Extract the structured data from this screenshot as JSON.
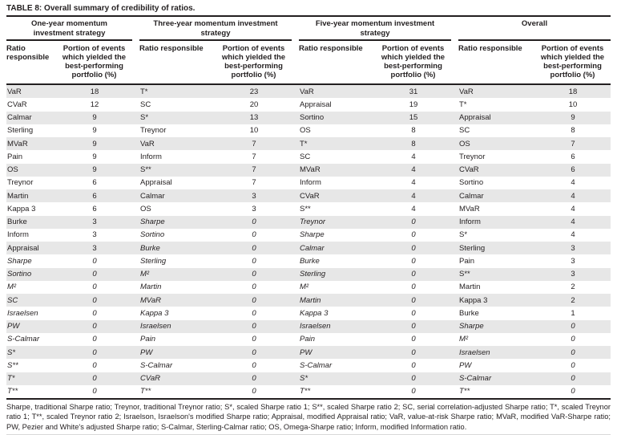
{
  "title": "TABLE 8: Overall summary of credibility of ratios.",
  "column_headers": {
    "ratio": "Ratio responsible",
    "portion": "Portion of events which yielded the best-performing portfolio (%)"
  },
  "groups": [
    {
      "label": "One-year momentum investment strategy",
      "rows": [
        [
          "VaR",
          "18"
        ],
        [
          "CVaR",
          "12"
        ],
        [
          "Calmar",
          "9"
        ],
        [
          "Sterling",
          "9"
        ],
        [
          "MVaR",
          "9"
        ],
        [
          "Pain",
          "9"
        ],
        [
          "OS",
          "9"
        ],
        [
          "Treynor",
          "6"
        ],
        [
          "Martin",
          "6"
        ],
        [
          "Kappa 3",
          "6"
        ],
        [
          "Burke",
          "3"
        ],
        [
          "Inform",
          "3"
        ],
        [
          "Appraisal",
          "3"
        ],
        [
          "Sharpe",
          "0"
        ],
        [
          "Sortino",
          "0"
        ],
        [
          "M²",
          "0"
        ],
        [
          "SC",
          "0"
        ],
        [
          "Israelsen",
          "0"
        ],
        [
          "PW",
          "0"
        ],
        [
          "S-Calmar",
          "0"
        ],
        [
          "S*",
          "0"
        ],
        [
          "S**",
          "0"
        ],
        [
          "T*",
          "0"
        ],
        [
          "T**",
          "0"
        ]
      ]
    },
    {
      "label": "Three-year momentum investment strategy",
      "rows": [
        [
          "T*",
          "23"
        ],
        [
          "SC",
          "20"
        ],
        [
          "S*",
          "13"
        ],
        [
          "Treynor",
          "10"
        ],
        [
          "VaR",
          "7"
        ],
        [
          "Inform",
          "7"
        ],
        [
          "S**",
          "7"
        ],
        [
          "Appraisal",
          "7"
        ],
        [
          "Calmar",
          "3"
        ],
        [
          "OS",
          "3"
        ],
        [
          "Sharpe",
          "0"
        ],
        [
          "Sortino",
          "0"
        ],
        [
          "Burke",
          "0"
        ],
        [
          "Sterling",
          "0"
        ],
        [
          "M²",
          "0"
        ],
        [
          "Martin",
          "0"
        ],
        [
          "MVaR",
          "0"
        ],
        [
          "Kappa 3",
          "0"
        ],
        [
          "Israelsen",
          "0"
        ],
        [
          "Pain",
          "0"
        ],
        [
          "PW",
          "0"
        ],
        [
          "S-Calmar",
          "0"
        ],
        [
          "CVaR",
          "0"
        ],
        [
          "T**",
          "0"
        ]
      ]
    },
    {
      "label": "Five-year momentum investment strategy",
      "rows": [
        [
          "VaR",
          "31"
        ],
        [
          "Appraisal",
          "19"
        ],
        [
          "Sortino",
          "15"
        ],
        [
          "OS",
          "8"
        ],
        [
          "T*",
          "8"
        ],
        [
          "SC",
          "4"
        ],
        [
          "MVaR",
          "4"
        ],
        [
          "Inform",
          "4"
        ],
        [
          "CVaR",
          "4"
        ],
        [
          "S**",
          "4"
        ],
        [
          "Treynor",
          "0"
        ],
        [
          "Sharpe",
          "0"
        ],
        [
          "Calmar",
          "0"
        ],
        [
          "Burke",
          "0"
        ],
        [
          "Sterling",
          "0"
        ],
        [
          "M²",
          "0"
        ],
        [
          "Martin",
          "0"
        ],
        [
          "Kappa 3",
          "0"
        ],
        [
          "Israelsen",
          "0"
        ],
        [
          "Pain",
          "0"
        ],
        [
          "PW",
          "0"
        ],
        [
          "S-Calmar",
          "0"
        ],
        [
          "S*",
          "0"
        ],
        [
          "T**",
          "0"
        ]
      ]
    },
    {
      "label": "Overall",
      "rows": [
        [
          "VaR",
          "18"
        ],
        [
          "T*",
          "10"
        ],
        [
          "Appraisal",
          "9"
        ],
        [
          "SC",
          "8"
        ],
        [
          "OS",
          "7"
        ],
        [
          "Treynor",
          "6"
        ],
        [
          "CVaR",
          "6"
        ],
        [
          "Sortino",
          "4"
        ],
        [
          "Calmar",
          "4"
        ],
        [
          "MVaR",
          "4"
        ],
        [
          "Inform",
          "4"
        ],
        [
          "S*",
          "4"
        ],
        [
          "Sterling",
          "3"
        ],
        [
          "Pain",
          "3"
        ],
        [
          "S**",
          "3"
        ],
        [
          "Martin",
          "2"
        ],
        [
          "Kappa 3",
          "2"
        ],
        [
          "Burke",
          "1"
        ],
        [
          "Sharpe",
          "0"
        ],
        [
          "M²",
          "0"
        ],
        [
          "Israelsen",
          "0"
        ],
        [
          "PW",
          "0"
        ],
        [
          "S-Calmar",
          "0"
        ],
        [
          "T**",
          "0"
        ]
      ]
    }
  ],
  "footnote": "Sharpe, traditional Sharpe ratio; Treynor, traditional Treynor ratio; S*, scaled Sharpe ratio 1; S**, scaled Sharpe ratio 2; SC, serial correlation-adjusted Sharpe ratio; T*, scaled Treynor ratio 1; T**, scaled Treynor ratio 2; Israelson, Israelson's modified Sharpe ratio; Appraisal, modified Appraisal ratio; VaR, value-at-risk Sharpe ratio; MVaR, modified VaR-Sharpe ratio; PW, Pezier and White's adjusted Sharpe ratio; S-Calmar, Sterling-Calmar ratio; OS, Omega-Sharpe ratio; Inform, modified Information ratio.",
  "colors": {
    "stripe": "#e7e7e7",
    "rule": "#231f20",
    "text": "#231f20"
  }
}
